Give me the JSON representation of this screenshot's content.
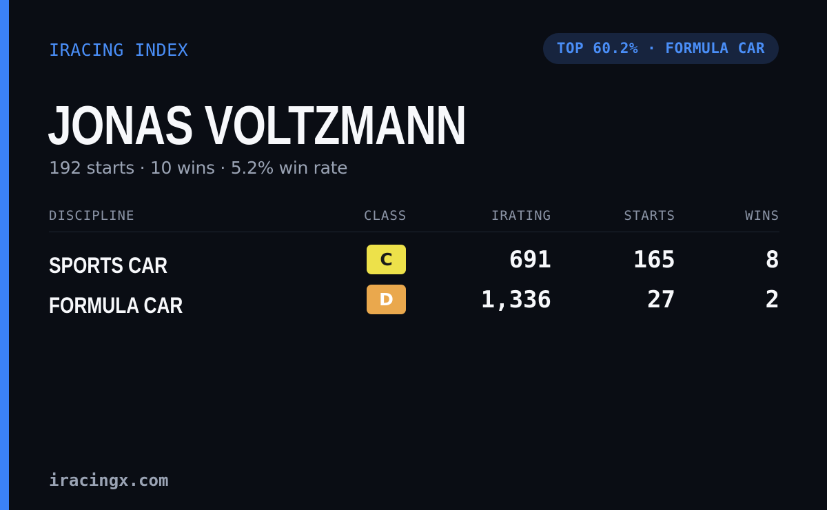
{
  "brand": "IRACING INDEX",
  "rank_badge": "TOP 60.2% · FORMULA CAR",
  "driver": {
    "name": "JONAS VOLTZMANN",
    "summary": "192 starts · 10 wins · 5.2% win rate"
  },
  "table": {
    "headers": {
      "discipline": "DISCIPLINE",
      "class": "CLASS",
      "irating": "IRATING",
      "starts": "STARTS",
      "wins": "WINS"
    },
    "rows": [
      {
        "discipline": "SPORTS CAR",
        "class": "C",
        "irating": "691",
        "starts": "165",
        "wins": "8"
      },
      {
        "discipline": "FORMULA CAR",
        "class": "D",
        "irating": "1,336",
        "starts": "27",
        "wins": "2"
      }
    ]
  },
  "footer": {
    "url": "iracingx.com"
  },
  "colors": {
    "background": "#0a0d14",
    "accent": "#3b82f6",
    "class_c": "#ede14a",
    "class_d": "#eaa84d"
  }
}
